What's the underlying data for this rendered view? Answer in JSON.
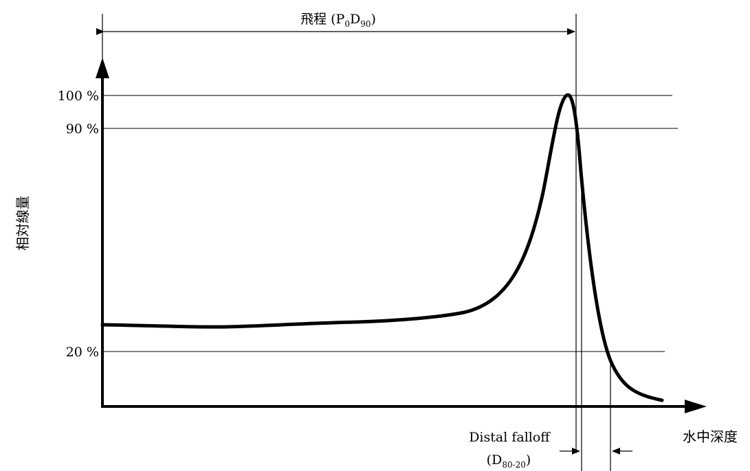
{
  "range_label": {
    "text": "飛程 (P",
    "sub1": "0",
    "mid": "D",
    "sub2": "90",
    "close": ")"
  },
  "y_axis_label": "相対線量",
  "x_axis_label": "水中深度",
  "levels": [
    {
      "label": "100 %",
      "value": 100
    },
    {
      "label": "90 %",
      "value": 90
    },
    {
      "label": "20 %",
      "value": 20
    }
  ],
  "falloff_label": {
    "line1": "Distal falloff",
    "open": "(D",
    "sub": "80-20",
    "close": ")"
  },
  "colors": {
    "ink": "#000000",
    "background": "#ffffff"
  }
}
